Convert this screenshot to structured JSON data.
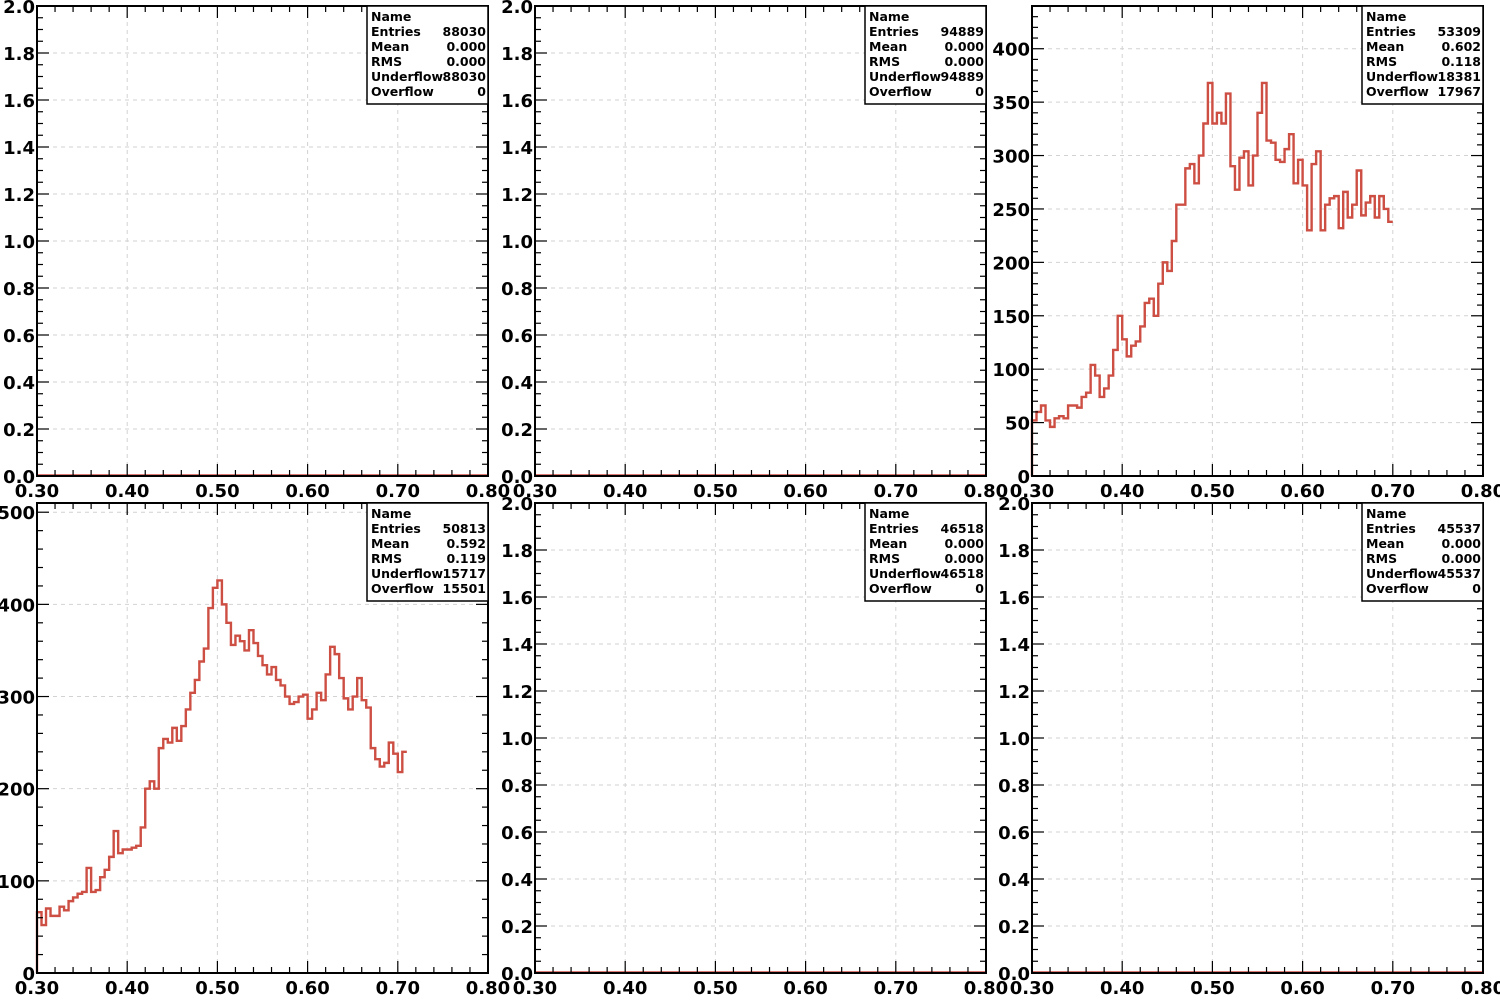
{
  "colors": {
    "histogram": "#cd4e43",
    "frame": "#000000",
    "grid": "#d2d2d2"
  },
  "chart_data": [
    {
      "type": "histogram",
      "xlim": [
        0.3,
        0.8
      ],
      "ylim": [
        0,
        2.0
      ],
      "x_ticks": [
        "0.30",
        "0.40",
        "0.50",
        "0.60",
        "0.70",
        "0.80"
      ],
      "y_ticks": [
        "0.0",
        "0.2",
        "0.4",
        "0.6",
        "0.8",
        "1.0",
        "1.2",
        "1.4",
        "1.6",
        "1.8",
        "2.0"
      ],
      "grid": true,
      "stats": [
        {
          "label": "Name",
          "value": ""
        },
        {
          "label": "Entries",
          "value": "88030"
        },
        {
          "label": "Mean",
          "value": "0.000"
        },
        {
          "label": "RMS",
          "value": "0.000"
        },
        {
          "label": "Underflow",
          "value": "88030"
        },
        {
          "label": "Overflow",
          "value": "0"
        }
      ],
      "bins": {
        "x_start": 0.3,
        "width": 0.005,
        "values": []
      }
    },
    {
      "type": "histogram",
      "xlim": [
        0.3,
        0.8
      ],
      "ylim": [
        0,
        2.0
      ],
      "x_ticks": [
        "0.30",
        "0.40",
        "0.50",
        "0.60",
        "0.70",
        "0.80"
      ],
      "y_ticks": [
        "0.0",
        "0.2",
        "0.4",
        "0.6",
        "0.8",
        "1.0",
        "1.2",
        "1.4",
        "1.6",
        "1.8",
        "2.0"
      ],
      "grid": true,
      "stats": [
        {
          "label": "Name",
          "value": ""
        },
        {
          "label": "Entries",
          "value": "94889"
        },
        {
          "label": "Mean",
          "value": "0.000"
        },
        {
          "label": "RMS",
          "value": "0.000"
        },
        {
          "label": "Underflow",
          "value": "94889"
        },
        {
          "label": "Overflow",
          "value": "0"
        }
      ],
      "bins": {
        "x_start": 0.3,
        "width": 0.005,
        "values": []
      }
    },
    {
      "type": "histogram",
      "xlim": [
        0.3,
        0.8
      ],
      "ylim": [
        0,
        440
      ],
      "x_ticks": [
        "0.30",
        "0.40",
        "0.50",
        "0.60",
        "0.70",
        "0.80"
      ],
      "y_ticks": [
        "0",
        "50",
        "100",
        "150",
        "200",
        "250",
        "300",
        "350",
        "400"
      ],
      "y_tick_values": [
        0,
        50,
        100,
        150,
        200,
        250,
        300,
        350,
        400
      ],
      "grid": true,
      "stats": [
        {
          "label": "Name",
          "value": ""
        },
        {
          "label": "Entries",
          "value": "53309"
        },
        {
          "label": "Mean",
          "value": "0.602"
        },
        {
          "label": "RMS",
          "value": "0.118"
        },
        {
          "label": "Underflow",
          "value": "18381"
        },
        {
          "label": "Overflow",
          "value": "17967"
        }
      ],
      "bins": {
        "x_start": 0.3,
        "width": 0.005,
        "values": [
          52,
          60,
          66,
          52,
          46,
          54,
          56,
          54,
          66,
          66,
          64,
          74,
          78,
          104,
          94,
          74,
          82,
          94,
          118,
          150,
          128,
          112,
          122,
          126,
          140,
          162,
          166,
          150,
          180,
          200,
          192,
          220,
          254,
          254,
          288,
          292,
          274,
          300,
          330,
          368,
          330,
          340,
          330,
          358,
          290,
          268,
          298,
          304,
          272,
          300,
          340,
          368,
          314,
          312,
          296,
          294,
          306,
          320,
          274,
          296,
          272,
          230,
          292,
          304,
          230,
          254,
          260,
          262,
          232,
          266,
          242,
          254,
          286,
          244,
          256,
          262,
          242,
          262,
          250,
          238
        ]
      }
    },
    {
      "type": "histogram",
      "xlim": [
        0.3,
        0.8
      ],
      "ylim": [
        0,
        510
      ],
      "x_ticks": [
        "0.30",
        "0.40",
        "0.50",
        "0.60",
        "0.70",
        "0.80"
      ],
      "y_ticks": [
        "0",
        "100",
        "200",
        "300",
        "400",
        "500"
      ],
      "y_tick_values": [
        0,
        100,
        200,
        300,
        400,
        500
      ],
      "grid": true,
      "stats": [
        {
          "label": "Name",
          "value": ""
        },
        {
          "label": "Entries",
          "value": "50813"
        },
        {
          "label": "Mean",
          "value": "0.592"
        },
        {
          "label": "RMS",
          "value": "0.119"
        },
        {
          "label": "Underflow",
          "value": "15717"
        },
        {
          "label": "Overflow",
          "value": "15501"
        }
      ],
      "bins": {
        "x_start": 0.3,
        "width": 0.005,
        "values": [
          66,
          52,
          70,
          62,
          62,
          72,
          68,
          78,
          82,
          86,
          88,
          114,
          88,
          90,
          104,
          112,
          126,
          154,
          130,
          134,
          134,
          136,
          138,
          158,
          200,
          208,
          200,
          244,
          254,
          250,
          266,
          252,
          268,
          286,
          304,
          318,
          338,
          352,
          396,
          418,
          426,
          400,
          380,
          356,
          366,
          360,
          350,
          372,
          358,
          344,
          334,
          324,
          332,
          318,
          312,
          300,
          292,
          294,
          300,
          302,
          276,
          286,
          304,
          296,
          324,
          354,
          346,
          320,
          298,
          286,
          300,
          320,
          296,
          288,
          244,
          232,
          224,
          228,
          250,
          238,
          218,
          240
        ]
      }
    },
    {
      "type": "histogram",
      "xlim": [
        0.3,
        0.8
      ],
      "ylim": [
        0,
        2.0
      ],
      "x_ticks": [
        "0.30",
        "0.40",
        "0.50",
        "0.60",
        "0.70",
        "0.80"
      ],
      "y_ticks": [
        "0.0",
        "0.2",
        "0.4",
        "0.6",
        "0.8",
        "1.0",
        "1.2",
        "1.4",
        "1.6",
        "1.8",
        "2.0"
      ],
      "grid": true,
      "stats": [
        {
          "label": "Name",
          "value": ""
        },
        {
          "label": "Entries",
          "value": "46518"
        },
        {
          "label": "Mean",
          "value": "0.000"
        },
        {
          "label": "RMS",
          "value": "0.000"
        },
        {
          "label": "Underflow",
          "value": "46518"
        },
        {
          "label": "Overflow",
          "value": "0"
        }
      ],
      "bins": {
        "x_start": 0.3,
        "width": 0.005,
        "values": []
      }
    },
    {
      "type": "histogram",
      "xlim": [
        0.3,
        0.8
      ],
      "ylim": [
        0,
        2.0
      ],
      "x_ticks": [
        "0.30",
        "0.40",
        "0.50",
        "0.60",
        "0.70",
        "0.80"
      ],
      "y_ticks": [
        "0.0",
        "0.2",
        "0.4",
        "0.6",
        "0.8",
        "1.0",
        "1.2",
        "1.4",
        "1.6",
        "1.8",
        "2.0"
      ],
      "grid": true,
      "stats": [
        {
          "label": "Name",
          "value": ""
        },
        {
          "label": "Entries",
          "value": "45537"
        },
        {
          "label": "Mean",
          "value": "0.000"
        },
        {
          "label": "RMS",
          "value": "0.000"
        },
        {
          "label": "Underflow",
          "value": "45537"
        },
        {
          "label": "Overflow",
          "value": "0"
        }
      ],
      "bins": {
        "x_start": 0.3,
        "width": 0.005,
        "values": []
      }
    }
  ]
}
